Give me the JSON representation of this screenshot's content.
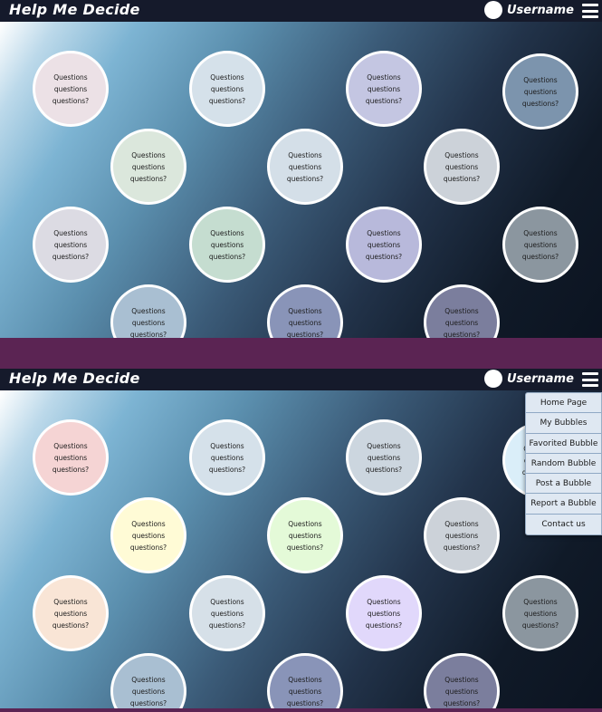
{
  "header": {
    "title": "Help Me Decide",
    "username": "Username"
  },
  "bubble_text": "Questions questions questions?",
  "menu": {
    "items": [
      "Home Page",
      "My Bubbles",
      "Favorited Bubble",
      "Random Bubble",
      "Post a Bubble",
      "Report a Bubble",
      "Contact us"
    ]
  },
  "colors": {
    "header_bg": "#151a2b",
    "separator": "#5b2453",
    "bubble_border": "#ffffff",
    "panel1_bubbles": [
      "#ece1e6",
      "#d5e1ea",
      "#c4c6e2",
      "#7c94ad",
      "#dbe7dc",
      "#d4dfe8",
      "#ccd2d9",
      "#dcdbe3",
      "#c5ddd0",
      "#b8b9db",
      "#8b969f",
      "#a9bfd2",
      "#8994b8",
      "#7b7e9d"
    ],
    "panel2_bubbles": [
      "#f5d4d4",
      "#d5e1ea",
      "#ccd6df",
      "#daeef9",
      "#fffbd6",
      "#e4fad8",
      "#ccd2d9",
      "#f9e5d6",
      "#d6e0e8",
      "#e1d8fb",
      "#8b969f",
      "#a9bfd2",
      "#8994b8",
      "#7b7e9d"
    ],
    "menu_bg": "#dfe8f2"
  }
}
